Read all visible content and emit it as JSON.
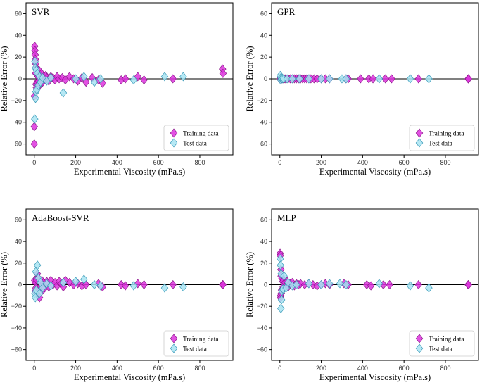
{
  "colors": {
    "training": "#dd33dd",
    "test": "#a8e4f2"
  },
  "chart_data": [
    {
      "type": "scatter",
      "title": "SVR",
      "xlabel": "Experimental Viscosity (mPa.s)",
      "ylabel": "Relative Error (%)",
      "xlim": [
        -40,
        960
      ],
      "ylim": [
        -70,
        70
      ],
      "xticks": [
        "0",
        "200",
        "400",
        "600",
        "800"
      ],
      "yticks": [
        "60",
        "40",
        "20",
        "0",
        "−20",
        "−40",
        "−60"
      ],
      "legend": [
        "Training data",
        "Test data"
      ],
      "series": [
        {
          "name": "Training data",
          "points": [
            [
              0,
              -60
            ],
            [
              0,
              -44
            ],
            [
              0,
              -16
            ],
            [
              2,
              30
            ],
            [
              3,
              26
            ],
            [
              4,
              22
            ],
            [
              5,
              18
            ],
            [
              6,
              14
            ],
            [
              7,
              5
            ],
            [
              8,
              -5
            ],
            [
              9,
              10
            ],
            [
              10,
              -8
            ],
            [
              12,
              4
            ],
            [
              14,
              -3
            ],
            [
              15,
              6
            ],
            [
              18,
              2
            ],
            [
              20,
              -2
            ],
            [
              22,
              8
            ],
            [
              25,
              -6
            ],
            [
              28,
              3
            ],
            [
              30,
              -4
            ],
            [
              35,
              5
            ],
            [
              40,
              -3
            ],
            [
              45,
              2
            ],
            [
              50,
              -1
            ],
            [
              55,
              3
            ],
            [
              60,
              1
            ],
            [
              70,
              -2
            ],
            [
              80,
              2
            ],
            [
              90,
              1
            ],
            [
              100,
              -1
            ],
            [
              110,
              2
            ],
            [
              120,
              0
            ],
            [
              135,
              1
            ],
            [
              150,
              -1
            ],
            [
              170,
              2
            ],
            [
              190,
              0
            ],
            [
              210,
              -2
            ],
            [
              230,
              1
            ],
            [
              250,
              -3
            ],
            [
              280,
              1
            ],
            [
              310,
              -1
            ],
            [
              330,
              -4
            ],
            [
              420,
              -1
            ],
            [
              440,
              0
            ],
            [
              500,
              2
            ],
            [
              530,
              -1
            ],
            [
              670,
              0
            ],
            [
              910,
              9
            ],
            [
              912,
              5
            ]
          ]
        },
        {
          "name": "Test data",
          "points": [
            [
              2,
              -37
            ],
            [
              3,
              16
            ],
            [
              5,
              10
            ],
            [
              6,
              -18
            ],
            [
              8,
              -12
            ],
            [
              10,
              8
            ],
            [
              12,
              -10
            ],
            [
              15,
              5
            ],
            [
              20,
              -6
            ],
            [
              25,
              2
            ],
            [
              30,
              -3
            ],
            [
              40,
              1
            ],
            [
              60,
              -2
            ],
            [
              80,
              1
            ],
            [
              140,
              -13
            ],
            [
              200,
              0
            ],
            [
              240,
              2
            ],
            [
              290,
              -3
            ],
            [
              320,
              0
            ],
            [
              480,
              -1
            ],
            [
              630,
              2
            ],
            [
              720,
              2
            ]
          ]
        }
      ]
    },
    {
      "type": "scatter",
      "title": "GPR",
      "xlabel": "Experimental Viscosity (mPa.s)",
      "ylabel": "Relative Error (%)",
      "xlim": [
        -40,
        960
      ],
      "ylim": [
        -70,
        70
      ],
      "xticks": [
        "0",
        "200",
        "400",
        "600",
        "800"
      ],
      "yticks": [
        "60",
        "40",
        "20",
        "0",
        "−20",
        "−40",
        "−60"
      ],
      "legend": [
        "Training data",
        "Test data"
      ],
      "series": [
        {
          "name": "Training data",
          "points": [
            [
              0,
              0
            ],
            [
              5,
              0
            ],
            [
              10,
              0
            ],
            [
              15,
              0
            ],
            [
              20,
              0
            ],
            [
              25,
              0
            ],
            [
              30,
              0
            ],
            [
              40,
              0
            ],
            [
              50,
              0
            ],
            [
              60,
              0
            ],
            [
              70,
              0
            ],
            [
              80,
              0
            ],
            [
              90,
              0
            ],
            [
              100,
              0
            ],
            [
              110,
              0
            ],
            [
              120,
              0
            ],
            [
              130,
              0
            ],
            [
              140,
              0
            ],
            [
              150,
              0
            ],
            [
              165,
              0
            ],
            [
              180,
              0
            ],
            [
              200,
              0
            ],
            [
              220,
              0
            ],
            [
              240,
              0
            ],
            [
              320,
              0
            ],
            [
              330,
              0
            ],
            [
              390,
              0
            ],
            [
              430,
              0
            ],
            [
              450,
              0
            ],
            [
              510,
              0
            ],
            [
              540,
              0
            ],
            [
              670,
              0
            ],
            [
              910,
              0
            ],
            [
              912,
              0
            ]
          ]
        },
        {
          "name": "Test data",
          "points": [
            [
              2,
              3
            ],
            [
              4,
              -1
            ],
            [
              6,
              1
            ],
            [
              8,
              0
            ],
            [
              12,
              0
            ],
            [
              18,
              0
            ],
            [
              35,
              0
            ],
            [
              60,
              0
            ],
            [
              95,
              0
            ],
            [
              140,
              0
            ],
            [
              200,
              0
            ],
            [
              240,
              0
            ],
            [
              300,
              0
            ],
            [
              320,
              0
            ],
            [
              480,
              0
            ],
            [
              630,
              0
            ],
            [
              720,
              0
            ]
          ]
        }
      ]
    },
    {
      "type": "scatter",
      "title": "AdaBoost-SVR",
      "xlabel": "Experimental Viscosity (mPa.s)",
      "ylabel": "Relative Error (%)",
      "xlim": [
        -40,
        960
      ],
      "ylim": [
        -70,
        70
      ],
      "xticks": [
        "0",
        "200",
        "400",
        "600",
        "800"
      ],
      "yticks": [
        "60",
        "40",
        "20",
        "0",
        "−20",
        "−40",
        "−60"
      ],
      "legend": [
        "Training data",
        "Test data"
      ],
      "series": [
        {
          "name": "Training data",
          "points": [
            [
              2,
              4
            ],
            [
              4,
              -6
            ],
            [
              6,
              2
            ],
            [
              8,
              -3
            ],
            [
              10,
              5
            ],
            [
              12,
              -8
            ],
            [
              15,
              10
            ],
            [
              18,
              -4
            ],
            [
              20,
              6
            ],
            [
              25,
              -12
            ],
            [
              28,
              3
            ],
            [
              32,
              -2
            ],
            [
              36,
              4
            ],
            [
              40,
              -5
            ],
            [
              45,
              2
            ],
            [
              50,
              -3
            ],
            [
              55,
              1
            ],
            [
              60,
              3
            ],
            [
              70,
              -2
            ],
            [
              80,
              4
            ],
            [
              90,
              0
            ],
            [
              100,
              2
            ],
            [
              110,
              -1
            ],
            [
              120,
              3
            ],
            [
              130,
              1
            ],
            [
              140,
              -2
            ],
            [
              150,
              4
            ],
            [
              170,
              2
            ],
            [
              190,
              0
            ],
            [
              210,
              1
            ],
            [
              230,
              -1
            ],
            [
              250,
              0
            ],
            [
              310,
              1
            ],
            [
              330,
              -2
            ],
            [
              420,
              0
            ],
            [
              440,
              -1
            ],
            [
              500,
              1
            ],
            [
              530,
              0
            ],
            [
              670,
              0
            ],
            [
              910,
              0
            ],
            [
              912,
              0
            ]
          ]
        },
        {
          "name": "Test data",
          "points": [
            [
              3,
              -8
            ],
            [
              5,
              -12
            ],
            [
              7,
              12
            ],
            [
              10,
              -5
            ],
            [
              15,
              18
            ],
            [
              20,
              6
            ],
            [
              25,
              -8
            ],
            [
              30,
              2
            ],
            [
              40,
              -3
            ],
            [
              60,
              1
            ],
            [
              80,
              -1
            ],
            [
              140,
              2
            ],
            [
              200,
              3
            ],
            [
              240,
              5
            ],
            [
              290,
              0
            ],
            [
              320,
              -1
            ],
            [
              480,
              -1
            ],
            [
              630,
              -3
            ],
            [
              720,
              -2
            ]
          ]
        }
      ]
    },
    {
      "type": "scatter",
      "title": "MLP",
      "xlabel": "Experimental Viscosity (mPa.s)",
      "ylabel": "Relative Error (%)",
      "xlim": [
        -40,
        960
      ],
      "ylim": [
        -70,
        70
      ],
      "xticks": [
        "0",
        "200",
        "400",
        "600",
        "800"
      ],
      "yticks": [
        "60",
        "40",
        "20",
        "0",
        "−20",
        "−40",
        "−60"
      ],
      "legend": [
        "Training data",
        "Test data"
      ],
      "series": [
        {
          "name": "Training data",
          "points": [
            [
              1,
              29
            ],
            [
              2,
              27
            ],
            [
              3,
              -12
            ],
            [
              4,
              -10
            ],
            [
              5,
              14
            ],
            [
              6,
              8
            ],
            [
              7,
              -8
            ],
            [
              8,
              -5
            ],
            [
              10,
              6
            ],
            [
              12,
              -4
            ],
            [
              14,
              3
            ],
            [
              16,
              -2
            ],
            [
              18,
              4
            ],
            [
              20,
              -3
            ],
            [
              25,
              2
            ],
            [
              30,
              -1
            ],
            [
              35,
              3
            ],
            [
              40,
              -2
            ],
            [
              50,
              1
            ],
            [
              60,
              2
            ],
            [
              70,
              -1
            ],
            [
              80,
              1
            ],
            [
              90,
              0
            ],
            [
              100,
              1
            ],
            [
              120,
              0
            ],
            [
              140,
              1
            ],
            [
              160,
              0
            ],
            [
              180,
              -1
            ],
            [
              200,
              0
            ],
            [
              220,
              1
            ],
            [
              240,
              0
            ],
            [
              310,
              1
            ],
            [
              330,
              0
            ],
            [
              420,
              0
            ],
            [
              440,
              -1
            ],
            [
              500,
              0
            ],
            [
              530,
              0
            ],
            [
              670,
              0
            ],
            [
              910,
              0
            ],
            [
              912,
              0
            ]
          ]
        },
        {
          "name": "Test data",
          "points": [
            [
              2,
              24
            ],
            [
              3,
              18
            ],
            [
              5,
              -22
            ],
            [
              6,
              10
            ],
            [
              8,
              -14
            ],
            [
              10,
              -6
            ],
            [
              15,
              -4
            ],
            [
              20,
              8
            ],
            [
              30,
              -3
            ],
            [
              40,
              2
            ],
            [
              60,
              -1
            ],
            [
              80,
              0
            ],
            [
              140,
              1
            ],
            [
              200,
              0
            ],
            [
              240,
              1
            ],
            [
              290,
              1
            ],
            [
              320,
              0
            ],
            [
              480,
              1
            ],
            [
              630,
              -1
            ],
            [
              720,
              -3
            ]
          ]
        }
      ]
    }
  ]
}
